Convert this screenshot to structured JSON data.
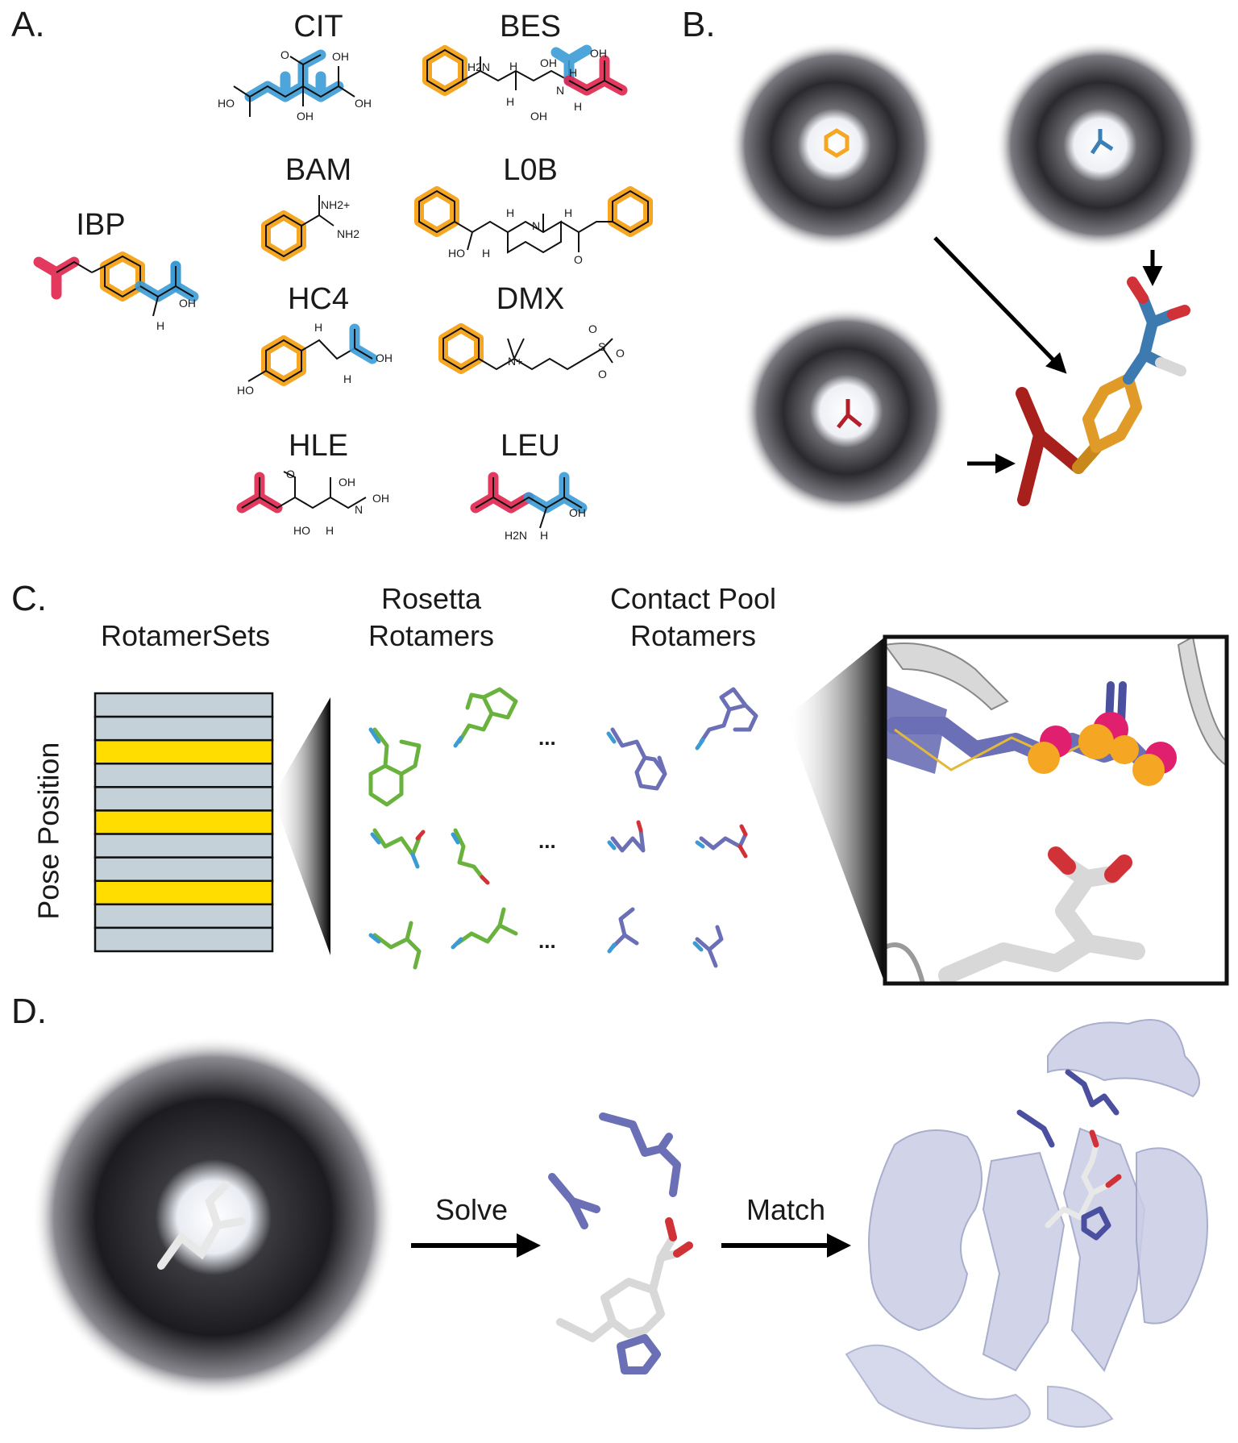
{
  "colors": {
    "isobutyl": "#e0234e",
    "phenyl": "#f5a623",
    "carboxyl": "#3a9bd5",
    "rosetta": "#6ab23e",
    "contact": "#6b6fb5",
    "highlight_row": "#ffdd00",
    "row_base": "#c5d1d8"
  },
  "panel_a": {
    "letter": "A.",
    "molecules": [
      {
        "name": "IBP",
        "labels": [
          "OH",
          "H"
        ]
      },
      {
        "name": "CIT",
        "labels": [
          "OH",
          "O",
          "HO",
          "OH",
          "OH"
        ]
      },
      {
        "name": "BES",
        "labels": [
          "H2N",
          "H",
          "OH",
          "H",
          "OH",
          "OH",
          "N",
          "H",
          "H"
        ]
      },
      {
        "name": "BAM",
        "labels": [
          "NH2+",
          "NH2"
        ]
      },
      {
        "name": "L0B",
        "labels": [
          "H",
          "N",
          "H",
          "HO",
          "H",
          "O"
        ]
      },
      {
        "name": "HC4",
        "labels": [
          "H",
          "OH",
          "H",
          "HO"
        ]
      },
      {
        "name": "DMX",
        "labels": [
          "N+",
          "S",
          "O",
          "O",
          "O"
        ]
      },
      {
        "name": "HLE",
        "labels": [
          "O",
          "OH",
          "N",
          "OH",
          "HO",
          "H"
        ]
      },
      {
        "name": "LEU",
        "labels": [
          "OH",
          "H2N",
          "H"
        ]
      }
    ]
  },
  "panel_b": {
    "letter": "B."
  },
  "panel_c": {
    "letter": "C.",
    "rotamersets_label": "RotamerSets",
    "pose_position_label": "Pose Position",
    "rosetta_label_1": "Rosetta",
    "rosetta_label_2": "Rotamers",
    "contact_label_1": "Contact Pool",
    "contact_label_2": "Rotamers",
    "ellipsis": "...",
    "rows": [
      false,
      false,
      true,
      false,
      false,
      true,
      false,
      false,
      true,
      false,
      false
    ]
  },
  "panel_d": {
    "letter": "D.",
    "solve_label": "Solve",
    "match_label": "Match"
  }
}
